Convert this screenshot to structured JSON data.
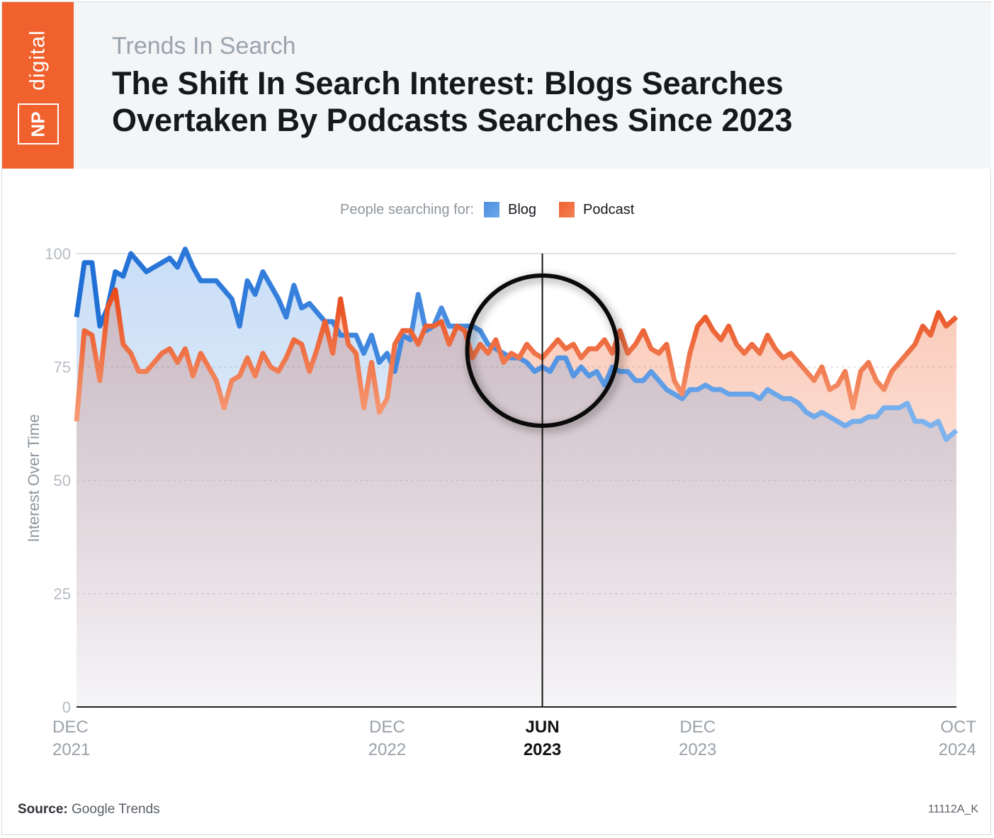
{
  "header": {
    "brand_np": "NP",
    "brand_digital": "digital",
    "eyebrow": "Trends In Search",
    "title": "The Shift In Search Interest: Blogs Searches Overtaken By Podcasts Searches Since 2023"
  },
  "legend": {
    "prefix": "People searching for:",
    "items": [
      {
        "label": "Blog",
        "color": "#4a90e2"
      },
      {
        "label": "Podcast",
        "color": "#f0612e"
      }
    ]
  },
  "footer": {
    "source_label": "Source:",
    "source_value": "Google Trends",
    "code": "11112A_K"
  },
  "chart_data": {
    "type": "line",
    "ylabel": "Interest Over Time",
    "ylim": [
      0,
      100
    ],
    "y_ticks": [
      "0",
      "25",
      "50",
      "75",
      "100"
    ],
    "x_ticks": [
      {
        "line1": "DEC",
        "line2": "2021",
        "t": 0,
        "highlight": false
      },
      {
        "line1": "DEC",
        "line2": "2022",
        "t": 12,
        "highlight": false
      },
      {
        "line1": "JUN",
        "line2": "2023",
        "t": 18,
        "highlight": true
      },
      {
        "line1": "DEC",
        "line2": "2023",
        "t": 24,
        "highlight": false
      },
      {
        "line1": "OCT",
        "line2": "2024",
        "t": 34,
        "highlight": false
      }
    ],
    "x_unit": "months since Dec 2021",
    "grid": true,
    "legend_position": "top-center",
    "highlight_marker": {
      "t": 18,
      "shape": "circle"
    },
    "series": [
      {
        "name": "Blog",
        "color": "#4a90e2",
        "points": [
          [
            0,
            86
          ],
          [
            0.3,
            98
          ],
          [
            0.6,
            98
          ],
          [
            0.9,
            84
          ],
          [
            1.2,
            88
          ],
          [
            1.5,
            96
          ],
          [
            1.8,
            95
          ],
          [
            2.1,
            100
          ],
          [
            2.4,
            98
          ],
          [
            2.7,
            96
          ],
          [
            3.0,
            97
          ],
          [
            3.3,
            98
          ],
          [
            3.6,
            99
          ],
          [
            3.9,
            97
          ],
          [
            4.2,
            101
          ],
          [
            4.5,
            97
          ],
          [
            4.8,
            94
          ],
          [
            5.1,
            94
          ],
          [
            5.4,
            94
          ],
          [
            5.7,
            92
          ],
          [
            6.0,
            90
          ],
          [
            6.3,
            84
          ],
          [
            6.6,
            94
          ],
          [
            6.9,
            91
          ],
          [
            7.2,
            96
          ],
          [
            7.5,
            93
          ],
          [
            7.8,
            90
          ],
          [
            8.1,
            86
          ],
          [
            8.4,
            93
          ],
          [
            8.7,
            88
          ],
          [
            9.0,
            89
          ],
          [
            9.3,
            87
          ],
          [
            9.6,
            85
          ],
          [
            9.9,
            85
          ],
          [
            10.2,
            82
          ],
          [
            10.5,
            82
          ],
          [
            10.8,
            82
          ],
          [
            11.1,
            78
          ],
          [
            11.4,
            82
          ],
          [
            11.7,
            76
          ],
          [
            12.0,
            78
          ],
          [
            12.3,
            74
          ],
          [
            12.6,
            82
          ],
          [
            12.9,
            81
          ],
          [
            13.2,
            91
          ],
          [
            13.5,
            83
          ],
          [
            13.8,
            84
          ],
          [
            14.1,
            88
          ],
          [
            14.4,
            84
          ],
          [
            14.7,
            84
          ],
          [
            15.0,
            84
          ],
          [
            15.3,
            84
          ],
          [
            15.6,
            83
          ],
          [
            15.9,
            80
          ],
          [
            16.2,
            79
          ],
          [
            16.5,
            78
          ],
          [
            16.8,
            77
          ],
          [
            17.1,
            77
          ],
          [
            17.4,
            76
          ],
          [
            17.7,
            74
          ],
          [
            18.0,
            75
          ],
          [
            18.3,
            74
          ],
          [
            18.6,
            77
          ],
          [
            18.9,
            77
          ],
          [
            19.2,
            73
          ],
          [
            19.5,
            75
          ],
          [
            19.8,
            73
          ],
          [
            20.1,
            74
          ],
          [
            20.4,
            71
          ],
          [
            20.7,
            75
          ],
          [
            21.0,
            74
          ],
          [
            21.3,
            74
          ],
          [
            21.6,
            72
          ],
          [
            21.9,
            72
          ],
          [
            22.2,
            74
          ],
          [
            22.5,
            72
          ],
          [
            22.8,
            70
          ],
          [
            23.1,
            69
          ],
          [
            23.4,
            68
          ],
          [
            23.7,
            70
          ],
          [
            24.0,
            70
          ],
          [
            24.3,
            71
          ],
          [
            24.6,
            70
          ],
          [
            24.9,
            70
          ],
          [
            25.2,
            69
          ],
          [
            25.5,
            69
          ],
          [
            25.8,
            69
          ],
          [
            26.1,
            69
          ],
          [
            26.4,
            68
          ],
          [
            26.7,
            70
          ],
          [
            27.0,
            69
          ],
          [
            27.3,
            68
          ],
          [
            27.6,
            68
          ],
          [
            27.9,
            67
          ],
          [
            28.2,
            65
          ],
          [
            28.5,
            64
          ],
          [
            28.8,
            65
          ],
          [
            29.1,
            64
          ],
          [
            29.4,
            63
          ],
          [
            29.7,
            62
          ],
          [
            30.0,
            63
          ],
          [
            30.3,
            63
          ],
          [
            30.6,
            64
          ],
          [
            30.9,
            64
          ],
          [
            31.2,
            66
          ],
          [
            31.5,
            66
          ],
          [
            31.8,
            66
          ],
          [
            32.1,
            67
          ],
          [
            32.4,
            63
          ],
          [
            32.7,
            63
          ],
          [
            33.0,
            62
          ],
          [
            33.3,
            63
          ],
          [
            33.6,
            59
          ],
          [
            34.0,
            61
          ]
        ]
      },
      {
        "name": "Podcast",
        "color": "#f0612e",
        "points": [
          [
            0,
            63
          ],
          [
            0.3,
            83
          ],
          [
            0.6,
            82
          ],
          [
            0.9,
            72
          ],
          [
            1.2,
            88
          ],
          [
            1.5,
            92
          ],
          [
            1.8,
            80
          ],
          [
            2.1,
            78
          ],
          [
            2.4,
            74
          ],
          [
            2.7,
            74
          ],
          [
            3.0,
            76
          ],
          [
            3.3,
            78
          ],
          [
            3.6,
            79
          ],
          [
            3.9,
            76
          ],
          [
            4.2,
            79
          ],
          [
            4.5,
            73
          ],
          [
            4.8,
            78
          ],
          [
            5.1,
            75
          ],
          [
            5.4,
            72
          ],
          [
            5.7,
            66
          ],
          [
            6.0,
            72
          ],
          [
            6.3,
            73
          ],
          [
            6.6,
            77
          ],
          [
            6.9,
            73
          ],
          [
            7.2,
            78
          ],
          [
            7.5,
            75
          ],
          [
            7.8,
            74
          ],
          [
            8.1,
            77
          ],
          [
            8.4,
            81
          ],
          [
            8.7,
            80
          ],
          [
            9.0,
            74
          ],
          [
            9.3,
            79
          ],
          [
            9.6,
            85
          ],
          [
            9.9,
            78
          ],
          [
            10.2,
            90
          ],
          [
            10.5,
            80
          ],
          [
            10.8,
            78
          ],
          [
            11.1,
            66
          ],
          [
            11.4,
            76
          ],
          [
            11.7,
            65
          ],
          [
            12.0,
            68
          ],
          [
            12.3,
            80
          ],
          [
            12.6,
            83
          ],
          [
            12.9,
            83
          ],
          [
            13.2,
            80
          ],
          [
            13.5,
            84
          ],
          [
            13.8,
            84
          ],
          [
            14.1,
            85
          ],
          [
            14.4,
            80
          ],
          [
            14.7,
            84
          ],
          [
            15.0,
            83
          ],
          [
            15.3,
            77
          ],
          [
            15.6,
            80
          ],
          [
            15.9,
            78
          ],
          [
            16.2,
            81
          ],
          [
            16.5,
            76
          ],
          [
            16.8,
            78
          ],
          [
            17.1,
            77
          ],
          [
            17.4,
            80
          ],
          [
            17.7,
            78
          ],
          [
            18.0,
            77
          ],
          [
            18.3,
            79
          ],
          [
            18.6,
            81
          ],
          [
            18.9,
            79
          ],
          [
            19.2,
            80
          ],
          [
            19.5,
            77
          ],
          [
            19.8,
            79
          ],
          [
            20.1,
            79
          ],
          [
            20.4,
            81
          ],
          [
            20.7,
            78
          ],
          [
            21.0,
            83
          ],
          [
            21.3,
            78
          ],
          [
            21.6,
            80
          ],
          [
            21.9,
            83
          ],
          [
            22.2,
            79
          ],
          [
            22.5,
            78
          ],
          [
            22.8,
            80
          ],
          [
            23.1,
            72
          ],
          [
            23.4,
            69
          ],
          [
            23.7,
            78
          ],
          [
            24.0,
            84
          ],
          [
            24.3,
            86
          ],
          [
            24.6,
            83
          ],
          [
            24.9,
            81
          ],
          [
            25.2,
            84
          ],
          [
            25.5,
            80
          ],
          [
            25.8,
            78
          ],
          [
            26.1,
            80
          ],
          [
            26.4,
            78
          ],
          [
            26.7,
            82
          ],
          [
            27.0,
            79
          ],
          [
            27.3,
            77
          ],
          [
            27.6,
            78
          ],
          [
            27.9,
            76
          ],
          [
            28.2,
            74
          ],
          [
            28.5,
            72
          ],
          [
            28.8,
            75
          ],
          [
            29.1,
            70
          ],
          [
            29.4,
            71
          ],
          [
            29.7,
            74
          ],
          [
            30.0,
            66
          ],
          [
            30.3,
            74
          ],
          [
            30.6,
            76
          ],
          [
            30.9,
            72
          ],
          [
            31.2,
            70
          ],
          [
            31.5,
            74
          ],
          [
            31.8,
            76
          ],
          [
            32.1,
            78
          ],
          [
            32.4,
            80
          ],
          [
            32.7,
            84
          ],
          [
            33.0,
            82
          ],
          [
            33.3,
            87
          ],
          [
            33.6,
            84
          ],
          [
            34.0,
            86
          ]
        ]
      }
    ]
  }
}
